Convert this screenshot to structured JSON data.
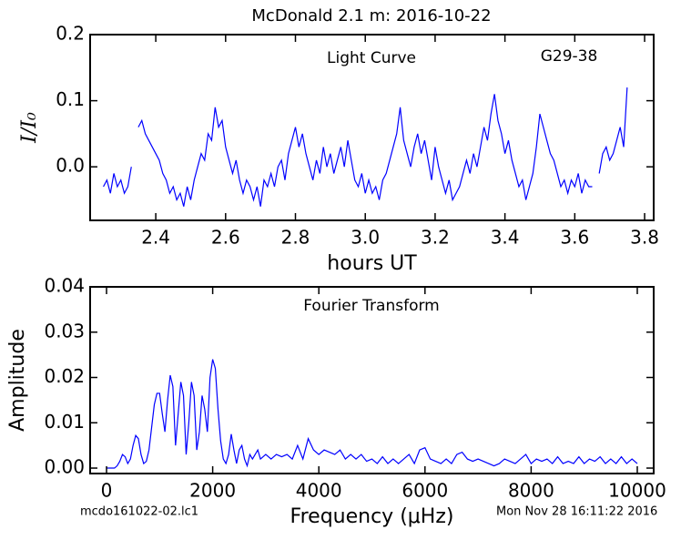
{
  "chart_data": [
    {
      "type": "line",
      "title": "McDonald 2.1 m:  2016-10-22",
      "annotations": [
        "Light Curve",
        "G29-38"
      ],
      "xlabel": "hours UT",
      "ylabel": "I/I₀",
      "color": "#0000ff",
      "xlim": [
        2.212,
        3.826
      ],
      "ylim": [
        -0.081,
        0.2
      ],
      "xticks": [
        2.4,
        2.6,
        2.8,
        {
          "value": 3,
          "label": "3.0"
        },
        3.2,
        3.4,
        3.6,
        3.8
      ],
      "yticks": [
        {
          "value": 0,
          "label": "0.0"
        },
        0.1,
        0.2
      ],
      "x": [
        2.25,
        2.26,
        2.27,
        2.28,
        2.29,
        2.3,
        2.31,
        2.32,
        2.33,
        2.34,
        2.35,
        2.36,
        2.37,
        2.38,
        2.39,
        2.4,
        2.41,
        2.42,
        2.43,
        2.44,
        2.45,
        2.46,
        2.47,
        2.48,
        2.49,
        2.5,
        2.51,
        2.52,
        2.53,
        2.54,
        2.55,
        2.56,
        2.57,
        2.58,
        2.59,
        2.6,
        2.61,
        2.62,
        2.63,
        2.64,
        2.65,
        2.66,
        2.67,
        2.68,
        2.69,
        2.7,
        2.71,
        2.72,
        2.73,
        2.74,
        2.75,
        2.76,
        2.77,
        2.78,
        2.79,
        2.8,
        2.81,
        2.82,
        2.83,
        2.84,
        2.85,
        2.86,
        2.87,
        2.88,
        2.89,
        2.9,
        2.91,
        2.92,
        2.93,
        2.94,
        2.95,
        2.96,
        2.97,
        2.98,
        2.99,
        3.0,
        3.01,
        3.02,
        3.03,
        3.04,
        3.05,
        3.06,
        3.07,
        3.08,
        3.09,
        3.1,
        3.11,
        3.12,
        3.13,
        3.14,
        3.15,
        3.16,
        3.17,
        3.18,
        3.19,
        3.2,
        3.21,
        3.22,
        3.23,
        3.24,
        3.25,
        3.26,
        3.27,
        3.28,
        3.29,
        3.3,
        3.31,
        3.32,
        3.33,
        3.34,
        3.35,
        3.36,
        3.37,
        3.38,
        3.39,
        3.4,
        3.41,
        3.42,
        3.43,
        3.44,
        3.45,
        3.46,
        3.47,
        3.48,
        3.49,
        3.5,
        3.51,
        3.52,
        3.53,
        3.54,
        3.55,
        3.56,
        3.57,
        3.58,
        3.59,
        3.6,
        3.61,
        3.62,
        3.63,
        3.64,
        3.65,
        3.66,
        3.67,
        3.68,
        3.69,
        3.7,
        3.71,
        3.72,
        3.73,
        3.74,
        3.75
      ],
      "values": [
        -0.03,
        -0.02,
        -0.04,
        -0.01,
        -0.03,
        -0.02,
        -0.04,
        -0.03,
        0.0,
        null,
        0.06,
        0.07,
        0.05,
        0.04,
        0.03,
        0.02,
        0.01,
        -0.01,
        -0.02,
        -0.04,
        -0.03,
        -0.05,
        -0.04,
        -0.06,
        -0.03,
        -0.05,
        -0.02,
        0.0,
        0.02,
        0.01,
        0.05,
        0.04,
        0.09,
        0.06,
        0.07,
        0.03,
        0.01,
        -0.01,
        0.01,
        -0.02,
        -0.04,
        -0.02,
        -0.03,
        -0.05,
        -0.03,
        -0.06,
        -0.02,
        -0.03,
        -0.01,
        -0.03,
        0.0,
        0.01,
        -0.02,
        0.02,
        0.04,
        0.06,
        0.03,
        0.05,
        0.02,
        0.0,
        -0.02,
        0.01,
        -0.01,
        0.03,
        0.0,
        0.02,
        -0.01,
        0.01,
        0.03,
        0.0,
        0.04,
        0.01,
        -0.02,
        -0.03,
        -0.01,
        -0.04,
        -0.02,
        -0.04,
        -0.03,
        -0.05,
        -0.02,
        -0.01,
        0.01,
        0.03,
        0.05,
        0.09,
        0.04,
        0.02,
        0.0,
        0.03,
        0.05,
        0.02,
        0.04,
        0.01,
        -0.02,
        0.03,
        0.0,
        -0.02,
        -0.04,
        -0.02,
        -0.05,
        -0.04,
        -0.03,
        -0.01,
        0.01,
        -0.01,
        0.02,
        0.0,
        0.03,
        0.06,
        0.04,
        0.08,
        0.11,
        0.07,
        0.05,
        0.02,
        0.04,
        0.01,
        -0.01,
        -0.03,
        -0.02,
        -0.05,
        -0.03,
        -0.01,
        0.03,
        0.08,
        0.06,
        0.04,
        0.02,
        0.01,
        -0.01,
        -0.03,
        -0.02,
        -0.04,
        -0.02,
        -0.03,
        -0.01,
        -0.04,
        -0.02,
        -0.03,
        -0.03,
        null,
        -0.01,
        0.02,
        0.03,
        0.01,
        0.02,
        0.04,
        0.06,
        0.03,
        0.12
      ]
    },
    {
      "type": "line",
      "annotations": [
        "Fourier Transform"
      ],
      "xlabel": "Frequency (μHz)",
      "ylabel": "Amplitude",
      "color": "#0000ff",
      "xlim": [
        -309,
        10309
      ],
      "ylim": [
        -0.0012,
        0.04
      ],
      "xticks": [
        0,
        2000,
        4000,
        6000,
        8000,
        10000
      ],
      "yticks": [
        {
          "value": 0,
          "label": "0.00"
        },
        {
          "value": 0.01,
          "label": "0.01"
        },
        {
          "value": 0.02,
          "label": "0.02"
        },
        {
          "value": 0.03,
          "label": "0.03"
        },
        {
          "value": 0.04,
          "label": "0.04"
        }
      ],
      "x": [
        0,
        50,
        100,
        150,
        200,
        250,
        300,
        350,
        400,
        450,
        500,
        550,
        600,
        650,
        700,
        750,
        800,
        850,
        900,
        950,
        1000,
        1050,
        1100,
        1150,
        1200,
        1250,
        1300,
        1350,
        1400,
        1450,
        1500,
        1550,
        1600,
        1650,
        1700,
        1750,
        1800,
        1850,
        1900,
        1950,
        2000,
        2050,
        2100,
        2150,
        2200,
        2250,
        2300,
        2350,
        2400,
        2450,
        2500,
        2550,
        2600,
        2650,
        2700,
        2750,
        2800,
        2850,
        2900,
        2950,
        3000,
        3100,
        3200,
        3300,
        3400,
        3500,
        3600,
        3700,
        3800,
        3900,
        4000,
        4100,
        4200,
        4300,
        4400,
        4500,
        4600,
        4700,
        4800,
        4900,
        5000,
        5100,
        5200,
        5300,
        5400,
        5500,
        5600,
        5700,
        5800,
        5900,
        6000,
        6100,
        6200,
        6300,
        6400,
        6500,
        6600,
        6700,
        6800,
        6900,
        7000,
        7100,
        7200,
        7300,
        7400,
        7500,
        7600,
        7700,
        7800,
        7900,
        8000,
        8100,
        8200,
        8300,
        8400,
        8500,
        8600,
        8700,
        8800,
        8900,
        9000,
        9100,
        9200,
        9300,
        9400,
        9500,
        9600,
        9700,
        9800,
        9900,
        10000
      ],
      "values": [
        0.0,
        0.0,
        0.0,
        0.0,
        0.0005,
        0.0015,
        0.003,
        0.0025,
        0.001,
        0.002,
        0.005,
        0.0072,
        0.0065,
        0.003,
        0.001,
        0.0015,
        0.004,
        0.009,
        0.014,
        0.0165,
        0.0165,
        0.012,
        0.008,
        0.015,
        0.0205,
        0.018,
        0.005,
        0.012,
        0.019,
        0.016,
        0.003,
        0.01,
        0.019,
        0.016,
        0.004,
        0.008,
        0.016,
        0.013,
        0.008,
        0.02,
        0.024,
        0.022,
        0.013,
        0.006,
        0.002,
        0.001,
        0.003,
        0.0075,
        0.004,
        0.001,
        0.004,
        0.005,
        0.002,
        0.0005,
        0.003,
        0.002,
        0.003,
        0.004,
        0.002,
        0.0025,
        0.003,
        0.002,
        0.003,
        0.0025,
        0.003,
        0.002,
        0.005,
        0.002,
        0.0065,
        0.004,
        0.003,
        0.004,
        0.0035,
        0.003,
        0.004,
        0.002,
        0.003,
        0.002,
        0.003,
        0.0015,
        0.002,
        0.001,
        0.0025,
        0.001,
        0.002,
        0.001,
        0.002,
        0.003,
        0.001,
        0.004,
        0.0045,
        0.002,
        0.0015,
        0.001,
        0.002,
        0.001,
        0.003,
        0.0035,
        0.002,
        0.0015,
        0.002,
        0.0015,
        0.001,
        0.0005,
        0.001,
        0.002,
        0.0015,
        0.001,
        0.002,
        0.003,
        0.001,
        0.002,
        0.0015,
        0.002,
        0.001,
        0.0025,
        0.001,
        0.0015,
        0.001,
        0.0025,
        0.001,
        0.002,
        0.0015,
        0.0025,
        0.001,
        0.002,
        0.001,
        0.0025,
        0.001,
        0.002,
        0.001
      ]
    }
  ],
  "footer": {
    "left": "mcdo161022-02.lc1",
    "right": "Mon Nov 28 16:11:22 2016"
  }
}
